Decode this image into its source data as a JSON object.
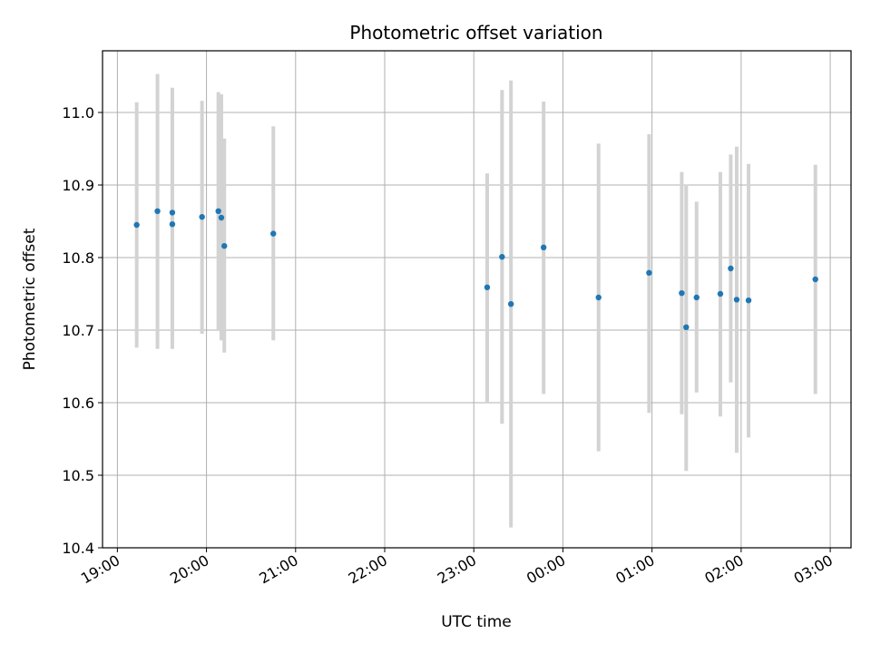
{
  "chart_data": {
    "type": "scatter",
    "title": "Photometric offset variation",
    "xlabel": "UTC time",
    "ylabel": "Photometric offset",
    "x_ticks": [
      "19:00",
      "20:00",
      "21:00",
      "22:00",
      "23:00",
      "00:00",
      "01:00",
      "02:00",
      "03:00"
    ],
    "y_ticks": [
      "10.4",
      "10.5",
      "10.6",
      "10.7",
      "10.8",
      "10.9",
      "11.0"
    ],
    "xlim": [
      "18:50",
      "03:14"
    ],
    "ylim": [
      10.4,
      11.085
    ],
    "grid": true,
    "series": [
      {
        "marker_color": "#1f77b4",
        "errorbar_color": "#d3d3d3",
        "points": [
          {
            "x": "19:13",
            "y": 10.845,
            "ylow": 10.676,
            "yhigh": 11.014
          },
          {
            "x": "19:27",
            "y": 10.864,
            "ylow": 10.674,
            "yhigh": 11.053
          },
          {
            "x": "19:37",
            "y": 10.862,
            "ylow": 10.69,
            "yhigh": 11.034
          },
          {
            "x": "19:37",
            "y": 10.846,
            "ylow": 10.674,
            "yhigh": 11.017
          },
          {
            "x": "19:57",
            "y": 10.856,
            "ylow": 10.695,
            "yhigh": 11.016
          },
          {
            "x": "20:08",
            "y": 10.864,
            "ylow": 10.7,
            "yhigh": 11.028
          },
          {
            "x": "20:10",
            "y": 10.855,
            "ylow": 10.686,
            "yhigh": 11.025
          },
          {
            "x": "20:12",
            "y": 10.816,
            "ylow": 10.669,
            "yhigh": 10.964
          },
          {
            "x": "20:45",
            "y": 10.833,
            "ylow": 10.686,
            "yhigh": 10.981
          },
          {
            "x": "23:09",
            "y": 10.759,
            "ylow": 10.6,
            "yhigh": 10.916
          },
          {
            "x": "23:19",
            "y": 10.801,
            "ylow": 10.571,
            "yhigh": 11.031
          },
          {
            "x": "23:25",
            "y": 10.736,
            "ylow": 10.428,
            "yhigh": 11.044
          },
          {
            "x": "23:47",
            "y": 10.814,
            "ylow": 10.612,
            "yhigh": 11.015
          },
          {
            "x": "00:24",
            "y": 10.745,
            "ylow": 10.533,
            "yhigh": 10.957
          },
          {
            "x": "00:58",
            "y": 10.779,
            "ylow": 10.586,
            "yhigh": 10.97
          },
          {
            "x": "01:20",
            "y": 10.751,
            "ylow": 10.584,
            "yhigh": 10.918
          },
          {
            "x": "01:23",
            "y": 10.704,
            "ylow": 10.506,
            "yhigh": 10.901
          },
          {
            "x": "01:30",
            "y": 10.745,
            "ylow": 10.614,
            "yhigh": 10.877
          },
          {
            "x": "01:46",
            "y": 10.75,
            "ylow": 10.581,
            "yhigh": 10.918
          },
          {
            "x": "01:53",
            "y": 10.785,
            "ylow": 10.628,
            "yhigh": 10.942
          },
          {
            "x": "01:57",
            "y": 10.742,
            "ylow": 10.531,
            "yhigh": 10.953
          },
          {
            "x": "02:05",
            "y": 10.741,
            "ylow": 10.552,
            "yhigh": 10.929
          },
          {
            "x": "02:50",
            "y": 10.77,
            "ylow": 10.612,
            "yhigh": 10.928
          }
        ]
      }
    ]
  }
}
